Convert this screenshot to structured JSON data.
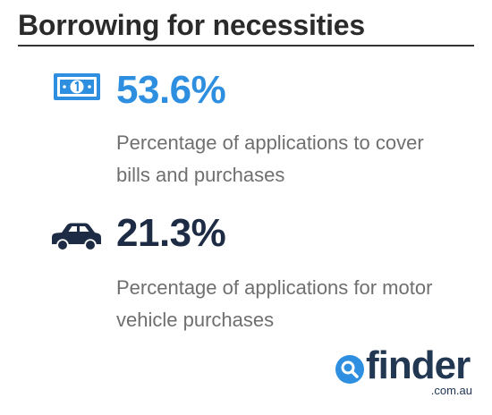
{
  "header": {
    "title": "Borrowing for necessities"
  },
  "stats": [
    {
      "value": "53.6%",
      "description": "Percentage of applications to cover bills and purchases",
      "icon": "banknote-icon",
      "color": "#2e8fe0"
    },
    {
      "value": "21.3%",
      "description": "Percentage of applications for motor vehicle purchases",
      "icon": "car-icon",
      "color": "#1d2c44"
    }
  ],
  "logo": {
    "name": "finder",
    "domain": ".com.au",
    "icon": "magnifier-icon",
    "colors": {
      "text": "#223752",
      "accent": "#2e8fe0"
    }
  }
}
